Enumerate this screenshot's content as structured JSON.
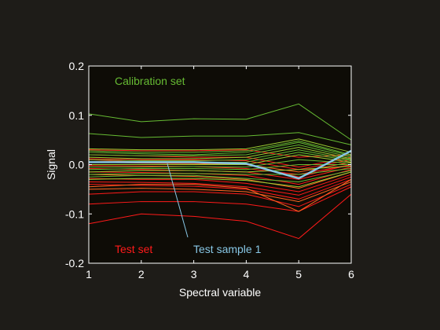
{
  "chart_data": {
    "type": "line",
    "xlabel": "Spectral variable",
    "ylabel": "Signal",
    "xlim": [
      1,
      6
    ],
    "ylim": [
      -0.2,
      0.2
    ],
    "x_ticks": [
      "1",
      "2",
      "3",
      "4",
      "5",
      "6"
    ],
    "y_ticks": [
      "-0.2",
      "-0.1",
      "0.0",
      "0.1",
      "0.2"
    ],
    "x": [
      1,
      2,
      3,
      4,
      5,
      6
    ],
    "grid": false,
    "colors": {
      "figure_bg": "#1e1c18",
      "plot_bg": "#0e0c06",
      "axis": "#ffffff",
      "calibration": "#66bb33",
      "calibration_alt": "#99cc33",
      "test": "#ff1a1a",
      "test_alt": "#ff6622",
      "test_sample": "#88c8e6"
    },
    "annotations": {
      "calibration": "Calibration set",
      "test": "Test set",
      "test_sample": "Test sample 1"
    },
    "calibration_series": [
      {
        "values": [
          0.103,
          0.087,
          0.093,
          0.092,
          0.123,
          0.05
        ]
      },
      {
        "values": [
          0.063,
          0.055,
          0.058,
          0.058,
          0.065,
          0.04
        ]
      },
      {
        "values": [
          0.032,
          0.03,
          0.03,
          0.032,
          0.052,
          0.025
        ]
      },
      {
        "values": [
          0.025,
          0.022,
          0.02,
          0.025,
          0.045,
          0.018
        ]
      },
      {
        "values": [
          0.02,
          0.018,
          0.018,
          0.02,
          0.04,
          0.015
        ]
      },
      {
        "values": [
          0.015,
          0.012,
          0.012,
          0.015,
          0.035,
          0.012
        ]
      },
      {
        "values": [
          0.01,
          0.008,
          0.008,
          0.01,
          0.03,
          0.01
        ]
      },
      {
        "values": [
          0.005,
          0.004,
          0.004,
          0.005,
          0.025,
          0.008
        ]
      },
      {
        "values": [
          0.0,
          0.0,
          0.0,
          0.0,
          0.02,
          0.005
        ]
      },
      {
        "values": [
          -0.005,
          -0.005,
          -0.004,
          -0.005,
          0.01,
          0.003
        ]
      },
      {
        "values": [
          -0.01,
          -0.008,
          -0.008,
          -0.01,
          0.0,
          0.0
        ]
      },
      {
        "values": [
          -0.015,
          -0.012,
          -0.012,
          -0.015,
          -0.01,
          -0.003
        ]
      },
      {
        "values": [
          -0.02,
          -0.018,
          -0.018,
          -0.02,
          -0.02,
          -0.008
        ]
      },
      {
        "values": [
          -0.025,
          -0.022,
          -0.022,
          -0.028,
          -0.035,
          -0.012
        ]
      },
      {
        "values": [
          -0.03,
          -0.028,
          -0.028,
          -0.032,
          -0.045,
          -0.015
        ]
      },
      {
        "values": [
          0.028,
          0.025,
          0.025,
          0.028,
          0.048,
          0.02
        ]
      }
    ],
    "test_series": [
      {
        "values": [
          0.03,
          0.028,
          0.028,
          0.03,
          0.015,
          0.02
        ]
      },
      {
        "values": [
          0.02,
          0.018,
          0.015,
          0.015,
          -0.005,
          0.015
        ]
      },
      {
        "values": [
          0.012,
          0.01,
          0.01,
          0.008,
          -0.01,
          0.01
        ]
      },
      {
        "values": [
          0.005,
          0.003,
          0.002,
          0.0,
          -0.015,
          0.005
        ]
      },
      {
        "values": [
          -0.002,
          -0.003,
          -0.004,
          -0.008,
          -0.02,
          0.0
        ]
      },
      {
        "values": [
          -0.008,
          -0.01,
          -0.012,
          -0.015,
          -0.03,
          -0.005
        ]
      },
      {
        "values": [
          -0.015,
          -0.016,
          -0.018,
          -0.022,
          -0.04,
          -0.01
        ]
      },
      {
        "values": [
          -0.02,
          -0.022,
          -0.024,
          -0.03,
          -0.048,
          -0.015
        ]
      },
      {
        "values": [
          -0.028,
          -0.03,
          -0.03,
          -0.038,
          -0.055,
          -0.02
        ]
      },
      {
        "values": [
          -0.035,
          -0.036,
          -0.038,
          -0.045,
          -0.062,
          -0.025
        ]
      },
      {
        "values": [
          -0.04,
          -0.042,
          -0.044,
          -0.05,
          -0.07,
          -0.03
        ]
      },
      {
        "values": [
          -0.05,
          -0.048,
          -0.05,
          -0.055,
          -0.075,
          -0.035
        ]
      },
      {
        "values": [
          -0.06,
          -0.055,
          -0.055,
          -0.06,
          -0.085,
          -0.04
        ]
      },
      {
        "values": [
          -0.08,
          -0.075,
          -0.075,
          -0.08,
          -0.095,
          -0.045
        ]
      },
      {
        "values": [
          -0.12,
          -0.1,
          -0.105,
          -0.115,
          -0.15,
          -0.06
        ]
      },
      {
        "values": [
          -0.045,
          -0.04,
          -0.04,
          -0.048,
          -0.095,
          -0.03
        ]
      },
      {
        "values": [
          0.01,
          0.005,
          0.005,
          0.0,
          -0.025,
          0.0
        ]
      }
    ],
    "test_sample_series": {
      "values": [
        0.005,
        0.005,
        0.005,
        0.002,
        -0.028,
        0.028
      ]
    }
  }
}
